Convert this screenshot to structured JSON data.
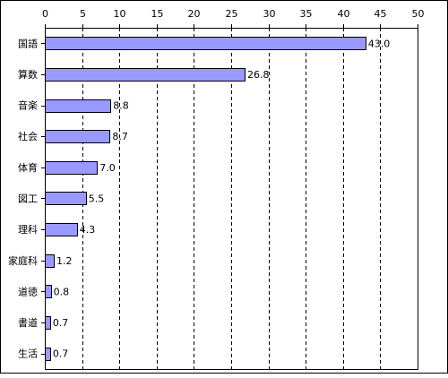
{
  "chart_data": {
    "type": "bar",
    "orientation": "horizontal",
    "title": "",
    "xlabel": "",
    "ylabel": "",
    "xlim": [
      0,
      50
    ],
    "ticks": [
      0,
      5,
      10,
      15,
      20,
      25,
      30,
      35,
      40,
      45,
      50
    ],
    "tick_labels": [
      "0",
      "5",
      "10",
      "15",
      "20",
      "25",
      "30",
      "35",
      "40",
      "45",
      "50"
    ],
    "grid": true,
    "legend": "none",
    "bar_color": "#9999ff",
    "categories": [
      "国語",
      "算数",
      "音楽",
      "社会",
      "体育",
      "図工",
      "理科",
      "家庭科",
      "道徳",
      "書道",
      "生活"
    ],
    "values": [
      43.0,
      26.8,
      8.8,
      8.7,
      7.0,
      5.5,
      4.3,
      1.2,
      0.8,
      0.7,
      0.7
    ],
    "value_labels": [
      "43.0",
      "26.8",
      "8.8",
      "8.7",
      "7.0",
      "5.5",
      "4.3",
      "1.2",
      "0.8",
      "0.7",
      "0.7"
    ]
  }
}
